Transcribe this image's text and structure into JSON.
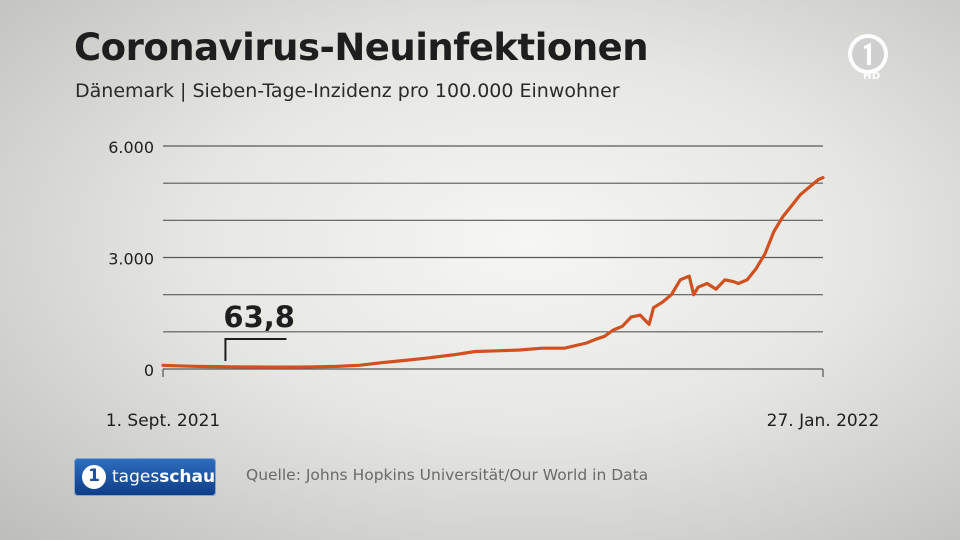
{
  "title": "Coronavirus-Neuinfektionen",
  "subtitle": "Dänemark | Sieben-Tage-Inzidenz pro 100.000 Einwohner",
  "logo": {
    "hd_label": "HD",
    "icon": "ard-one-logo"
  },
  "branding": {
    "mark": "1",
    "name_regular": "tages",
    "name_bold": "schau"
  },
  "source": "Quelle: Johns Hopkins Universität/Our World in Data",
  "colors": {
    "line": "#d0511f",
    "grid": "#5a5a5a",
    "text": "#222222"
  },
  "chart_data": {
    "type": "line",
    "title": "Coronavirus-Neuinfektionen",
    "subtitle": "Dänemark | Sieben-Tage-Inzidenz pro 100.000 Einwohner",
    "ylim": [
      0,
      6000
    ],
    "yticks": [
      0,
      3000,
      6000
    ],
    "ytick_labels": [
      "0",
      "3.000",
      "6.000"
    ],
    "xlim": [
      "2021-09-01",
      "2022-01-27"
    ],
    "x_tick_labels": [
      "1. Sept. 2021",
      "27. Jan. 2022"
    ],
    "grid": true,
    "annotation": {
      "label": "63,8",
      "date": "2021-09-15",
      "value": 63.8
    },
    "series": [
      {
        "x": [
          "2021-09-01",
          "2021-09-04",
          "2021-09-07",
          "2021-09-10",
          "2021-09-13",
          "2021-09-16",
          "2021-09-20",
          "2021-09-25",
          "2021-10-01",
          "2021-10-05",
          "2021-10-10",
          "2021-10-15",
          "2021-10-20",
          "2021-10-25",
          "2021-10-30",
          "2021-11-05",
          "2021-11-10",
          "2021-11-15",
          "2021-11-20",
          "2021-11-25",
          "2021-11-30",
          "2021-12-05",
          "2021-12-07",
          "2021-12-09",
          "2021-12-11",
          "2021-12-13",
          "2021-12-15",
          "2021-12-17",
          "2021-12-19",
          "2021-12-20",
          "2021-12-22",
          "2021-12-24",
          "2021-12-26",
          "2021-12-28",
          "2021-12-29",
          "2021-12-30",
          "2022-01-01",
          "2022-01-03",
          "2022-01-05",
          "2022-01-07",
          "2022-01-08",
          "2022-01-10",
          "2022-01-12",
          "2022-01-14",
          "2022-01-16",
          "2022-01-18",
          "2022-01-20",
          "2022-01-22",
          "2022-01-24",
          "2022-01-26",
          "2022-01-27"
        ],
        "values": [
          100,
          85,
          75,
          68,
          64,
          60,
          55,
          52,
          50,
          58,
          70,
          100,
          170,
          230,
          290,
          380,
          470,
          490,
          510,
          560,
          560,
          700,
          800,
          880,
          1050,
          1150,
          1400,
          1450,
          1200,
          1650,
          1800,
          2000,
          2400,
          2500,
          2000,
          2200,
          2300,
          2150,
          2400,
          2350,
          2300,
          2400,
          2700,
          3100,
          3700,
          4100,
          4400,
          4700,
          4900,
          5100,
          5150
        ]
      }
    ]
  }
}
